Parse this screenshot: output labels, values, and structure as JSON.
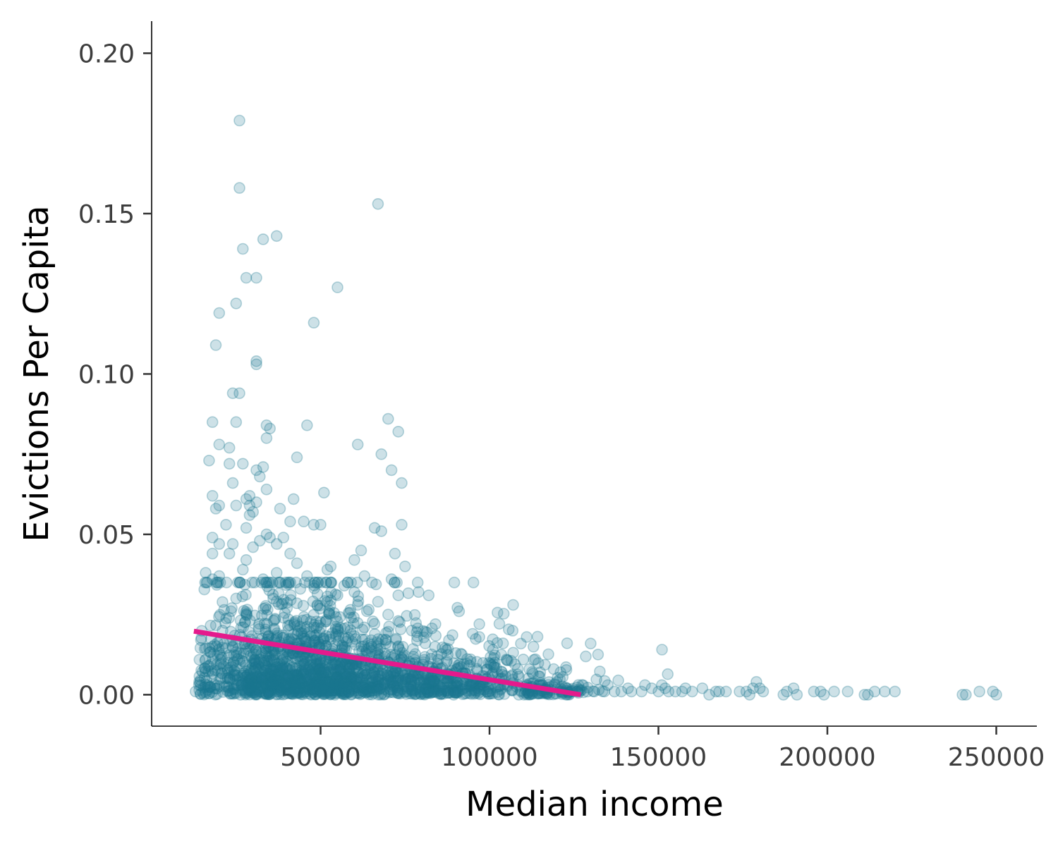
{
  "chart_data": {
    "type": "scatter",
    "title": "",
    "xlabel": "Median income",
    "ylabel": "Evictions Per Capita",
    "xlim": [
      0,
      262000
    ],
    "ylim": [
      -0.0098,
      0.21
    ],
    "x_ticks": [
      50000,
      100000,
      150000,
      200000,
      250000
    ],
    "x_tick_labels": [
      "50000",
      "100000",
      "150000",
      "200000",
      "250000"
    ],
    "y_ticks": [
      0.0,
      0.05,
      0.1,
      0.15,
      0.2
    ],
    "y_tick_labels": [
      "0.00",
      "0.05",
      "0.10",
      "0.15",
      "0.20"
    ],
    "grid": false,
    "legend": "none",
    "point_color": "#1a7890",
    "point_opacity": 0.22,
    "trend_color": "#e41a8c",
    "trend_line": {
      "x": [
        12500,
        127000
      ],
      "y": [
        0.0198,
        0.0
      ]
    },
    "bulk_clusters": [
      {
        "x_center": 40000,
        "x_spread": 14000,
        "y_scale": 0.011,
        "count": 950
      },
      {
        "x_center": 60000,
        "x_spread": 18000,
        "y_scale": 0.008,
        "count": 650
      },
      {
        "x_center": 90000,
        "x_spread": 16000,
        "y_scale": 0.005,
        "count": 380
      },
      {
        "x_center": 118000,
        "x_spread": 7000,
        "y_scale": 0.002,
        "count": 90
      }
    ],
    "points": [
      [
        26000,
        0.179
      ],
      [
        26000,
        0.158
      ],
      [
        67000,
        0.153
      ],
      [
        37000,
        0.143
      ],
      [
        33000,
        0.142
      ],
      [
        27000,
        0.139
      ],
      [
        28000,
        0.13
      ],
      [
        31000,
        0.13
      ],
      [
        55000,
        0.127
      ],
      [
        25000,
        0.122
      ],
      [
        20000,
        0.119
      ],
      [
        48000,
        0.116
      ],
      [
        19000,
        0.109
      ],
      [
        31000,
        0.104
      ],
      [
        31000,
        0.103
      ],
      [
        24000,
        0.094
      ],
      [
        26000,
        0.094
      ],
      [
        70000,
        0.086
      ],
      [
        18000,
        0.085
      ],
      [
        25000,
        0.085
      ],
      [
        46000,
        0.084
      ],
      [
        34000,
        0.084
      ],
      [
        35000,
        0.083
      ],
      [
        73000,
        0.082
      ],
      [
        34000,
        0.08
      ],
      [
        20000,
        0.078
      ],
      [
        61000,
        0.078
      ],
      [
        23000,
        0.077
      ],
      [
        68000,
        0.075
      ],
      [
        43000,
        0.074
      ],
      [
        17000,
        0.073
      ],
      [
        23000,
        0.072
      ],
      [
        27000,
        0.072
      ],
      [
        33000,
        0.071
      ],
      [
        71000,
        0.07
      ],
      [
        31000,
        0.07
      ],
      [
        32000,
        0.068
      ],
      [
        74000,
        0.066
      ],
      [
        24000,
        0.066
      ],
      [
        34000,
        0.064
      ],
      [
        51000,
        0.063
      ],
      [
        29000,
        0.062
      ],
      [
        18000,
        0.062
      ],
      [
        28000,
        0.061
      ],
      [
        42000,
        0.061
      ],
      [
        31000,
        0.06
      ],
      [
        29000,
        0.059
      ],
      [
        25000,
        0.059
      ],
      [
        20000,
        0.059
      ],
      [
        19000,
        0.058
      ],
      [
        38000,
        0.058
      ],
      [
        30000,
        0.057
      ],
      [
        29000,
        0.056
      ],
      [
        41000,
        0.054
      ],
      [
        45000,
        0.054
      ],
      [
        22000,
        0.053
      ],
      [
        48000,
        0.053
      ],
      [
        74000,
        0.053
      ],
      [
        50000,
        0.053
      ],
      [
        66000,
        0.052
      ],
      [
        68000,
        0.051
      ],
      [
        28000,
        0.052
      ],
      [
        34000,
        0.05
      ],
      [
        35000,
        0.049
      ],
      [
        39000,
        0.049
      ],
      [
        18000,
        0.049
      ],
      [
        32000,
        0.048
      ],
      [
        24000,
        0.047
      ],
      [
        37000,
        0.047
      ],
      [
        20000,
        0.047
      ],
      [
        30000,
        0.046
      ],
      [
        62000,
        0.045
      ],
      [
        23000,
        0.044
      ],
      [
        41000,
        0.044
      ],
      [
        72000,
        0.044
      ],
      [
        18000,
        0.044
      ],
      [
        28000,
        0.042
      ],
      [
        60000,
        0.042
      ],
      [
        43000,
        0.041
      ],
      [
        53000,
        0.04
      ],
      [
        75000,
        0.04
      ],
      [
        27000,
        0.039
      ],
      [
        52000,
        0.039
      ],
      [
        16000,
        0.038
      ],
      [
        20000,
        0.037
      ],
      [
        37000,
        0.038
      ],
      [
        46000,
        0.037
      ],
      [
        63000,
        0.037
      ],
      [
        71000,
        0.036
      ],
      [
        18000,
        0.036
      ],
      [
        33000,
        0.036
      ],
      [
        57000,
        0.034
      ],
      [
        44000,
        0.033
      ],
      [
        60000,
        0.032
      ],
      [
        79000,
        0.032
      ],
      [
        82000,
        0.031
      ],
      [
        73000,
        0.031
      ],
      [
        55000,
        0.031
      ],
      [
        36000,
        0.03
      ],
      [
        25000,
        0.03
      ],
      [
        67000,
        0.029
      ],
      [
        49000,
        0.028
      ],
      [
        61000,
        0.028
      ],
      [
        107000,
        0.028
      ],
      [
        91000,
        0.026
      ],
      [
        70000,
        0.025
      ],
      [
        28000,
        0.025
      ],
      [
        39000,
        0.024
      ],
      [
        59000,
        0.024
      ],
      [
        73000,
        0.023
      ],
      [
        97000,
        0.022
      ],
      [
        84000,
        0.022
      ],
      [
        58000,
        0.021
      ],
      [
        21000,
        0.02
      ],
      [
        77000,
        0.02
      ],
      [
        95000,
        0.019
      ],
      [
        97000,
        0.018
      ],
      [
        111000,
        0.018
      ],
      [
        88000,
        0.017
      ],
      [
        65000,
        0.017
      ],
      [
        104000,
        0.016
      ],
      [
        81000,
        0.016
      ],
      [
        113000,
        0.015
      ],
      [
        18000,
        0.015
      ],
      [
        101000,
        0.014
      ],
      [
        90000,
        0.013
      ],
      [
        20000,
        0.013
      ],
      [
        16000,
        0.011
      ],
      [
        105000,
        0.011
      ],
      [
        110000,
        0.011
      ],
      [
        17000,
        0.009
      ],
      [
        119000,
        0.008
      ],
      [
        121000,
        0.007
      ],
      [
        115000,
        0.007
      ],
      [
        14000,
        0.003
      ],
      [
        13000,
        0.001
      ],
      [
        123000,
        0.002
      ],
      [
        126000,
        0.001
      ],
      [
        129000,
        0.001
      ],
      [
        131000,
        0.001
      ],
      [
        134000,
        0.001
      ],
      [
        135000,
        0.003
      ],
      [
        137000,
        0.001
      ],
      [
        139000,
        0.001
      ],
      [
        141000,
        0.002
      ],
      [
        142000,
        0.001
      ],
      [
        145000,
        0.001
      ],
      [
        146000,
        0.003
      ],
      [
        148000,
        0.002
      ],
      [
        150000,
        0.001
      ],
      [
        151000,
        0.003
      ],
      [
        152000,
        0.002
      ],
      [
        153000,
        0.001
      ],
      [
        155000,
        0.001
      ],
      [
        157000,
        0.001
      ],
      [
        158000,
        0.002
      ],
      [
        160000,
        0.001
      ],
      [
        163000,
        0.002
      ],
      [
        165000,
        0.0
      ],
      [
        167000,
        0.001
      ],
      [
        168000,
        0.001
      ],
      [
        170000,
        0.001
      ],
      [
        174000,
        0.001
      ],
      [
        176000,
        0.001
      ],
      [
        177000,
        0.0
      ],
      [
        178000,
        0.002
      ],
      [
        179000,
        0.004
      ],
      [
        180000,
        0.002
      ],
      [
        181000,
        0.001
      ],
      [
        187000,
        0.0
      ],
      [
        188000,
        0.001
      ],
      [
        190000,
        0.002
      ],
      [
        191000,
        0.0
      ],
      [
        196000,
        0.001
      ],
      [
        198000,
        0.001
      ],
      [
        199000,
        0.0
      ],
      [
        202000,
        0.001
      ],
      [
        206000,
        0.001
      ],
      [
        211000,
        0.0
      ],
      [
        212000,
        0.0
      ],
      [
        214000,
        0.001
      ],
      [
        217000,
        0.001
      ],
      [
        220000,
        0.001
      ],
      [
        240000,
        0.0
      ],
      [
        241000,
        0.0
      ],
      [
        245000,
        0.001
      ],
      [
        249000,
        0.001
      ],
      [
        250000,
        0.0
      ]
    ]
  }
}
